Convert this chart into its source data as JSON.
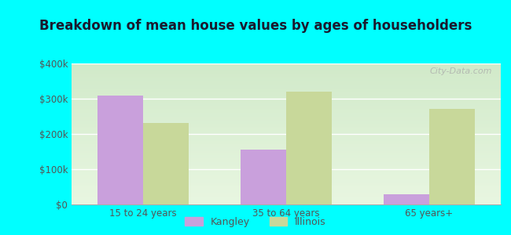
{
  "title": "Breakdown of mean house values by ages of householders",
  "categories": [
    "15 to 24 years",
    "35 to 64 years",
    "65 years+"
  ],
  "kangley_values": [
    310000,
    155000,
    30000
  ],
  "illinois_values": [
    232000,
    320000,
    272000
  ],
  "kangley_color": "#c9a0dc",
  "illinois_color": "#c8d89a",
  "ylim": [
    0,
    400000
  ],
  "yticks": [
    0,
    100000,
    200000,
    300000,
    400000
  ],
  "ytick_labels": [
    "$0",
    "$100k",
    "$200k",
    "$300k",
    "$400k"
  ],
  "background_color": "#00ffff",
  "plot_bg": "#e8f5e0",
  "bar_width": 0.32,
  "legend_labels": [
    "Kangley",
    "Illinois"
  ],
  "watermark": "City-Data.com",
  "title_color": "#1a1a2e",
  "tick_color": "#555555"
}
